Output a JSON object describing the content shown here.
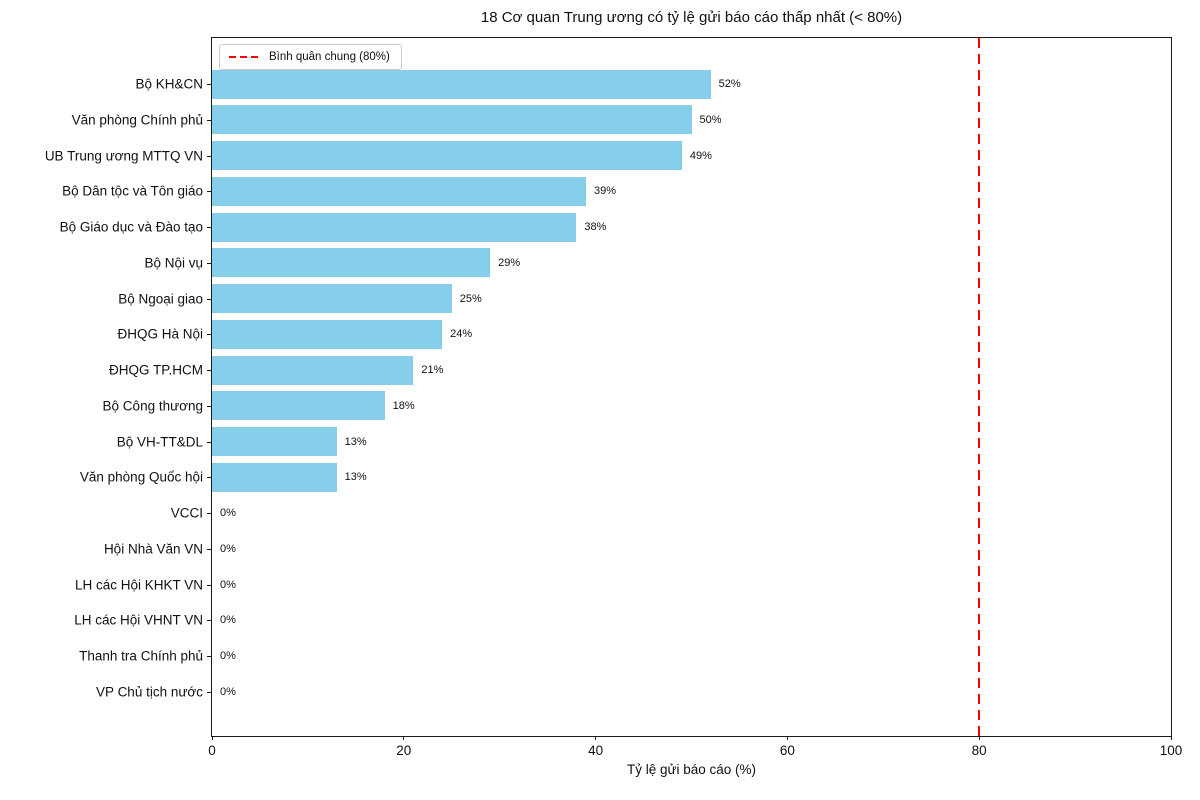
{
  "chart_data": {
    "type": "bar",
    "orientation": "horizontal",
    "title": "18 Cơ quan Trung ương có tỷ lệ gửi báo cáo thấp nhất (< 80%)",
    "xlabel": "Tỷ lệ gửi báo cáo (%)",
    "ylabel": "",
    "categories": [
      "Bộ KH&CN",
      "Văn phòng Chính phủ",
      "UB Trung ương MTTQ VN",
      "Bộ Dân tộc và Tôn giáo",
      "Bộ Giáo dục và Đào tạo",
      "Bộ Nội vụ",
      "Bộ Ngoại giao",
      "ĐHQG Hà Nội",
      "ĐHQG TP.HCM",
      "Bộ Công thương",
      "Bộ VH-TT&DL",
      "Văn phòng Quốc hội",
      "VCCI",
      "Hội Nhà Văn VN",
      "LH các Hội KHKT VN",
      "LH các Hội VHNT VN",
      "Thanh tra Chính phủ",
      "VP Chủ tịch nước"
    ],
    "values": [
      52,
      50,
      49,
      39,
      38,
      29,
      25,
      24,
      21,
      18,
      13,
      13,
      0,
      0,
      0,
      0,
      0,
      0
    ],
    "value_labels": [
      "52%",
      "50%",
      "49%",
      "39%",
      "38%",
      "29%",
      "25%",
      "24%",
      "21%",
      "18%",
      "13%",
      "13%",
      "0%",
      "0%",
      "0%",
      "0%",
      "0%",
      "0%"
    ],
    "xlim": [
      0,
      100
    ],
    "x_ticks": [
      0,
      20,
      40,
      60,
      80,
      100
    ],
    "grid": false,
    "bar_color": "#87CEEB",
    "reference_line": {
      "x": 80,
      "color": "#ff0000",
      "style": "dashed"
    },
    "legend": {
      "position": "upper left",
      "entries": [
        {
          "label": "Bình quân chung (80%)",
          "color": "#ff0000",
          "style": "dashed"
        }
      ]
    }
  }
}
